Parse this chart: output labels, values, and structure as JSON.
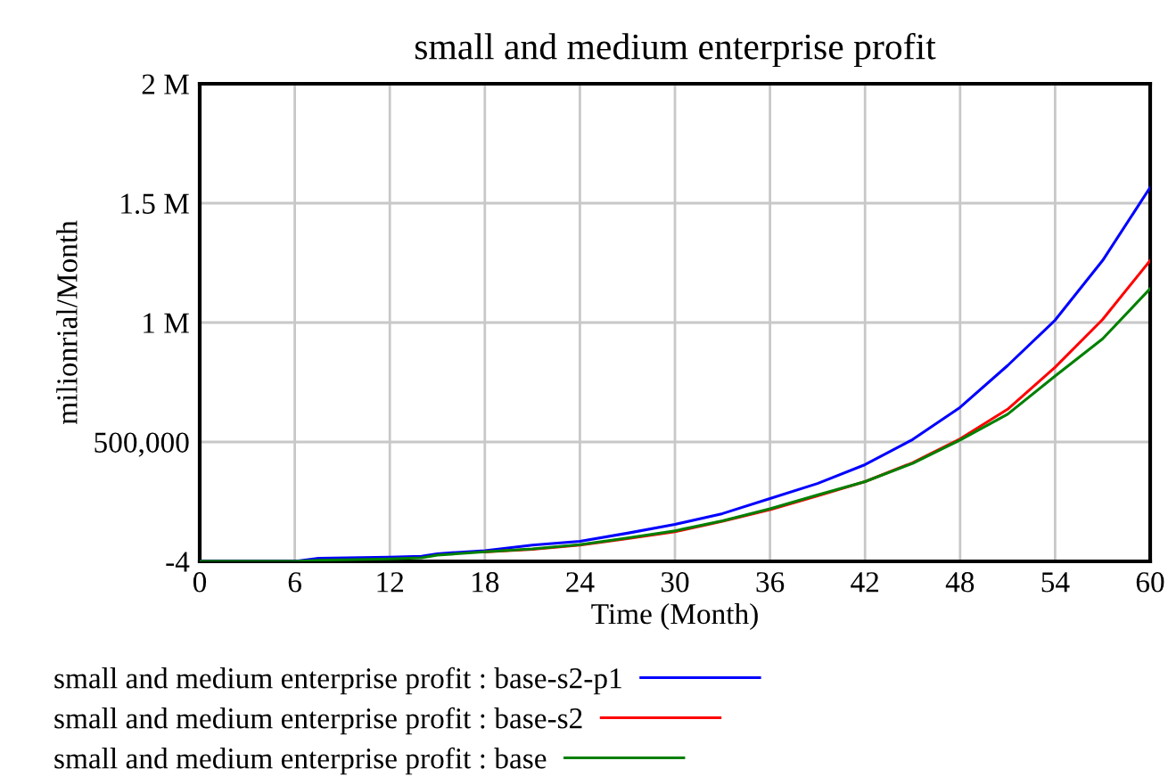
{
  "chart_data": {
    "type": "line",
    "title": "small and medium enterprise profit",
    "xlabel": "Time (Month)",
    "ylabel": "milionrial/Month",
    "x": [
      0,
      6,
      7.5,
      12,
      14,
      15,
      18,
      21,
      24,
      27,
      30,
      33,
      36,
      39,
      42,
      45,
      48,
      51,
      54,
      57,
      60
    ],
    "series": [
      {
        "name": "small and medium enterprise profit : base-s2-p1",
        "color": "#0000ff",
        "values": [
          0,
          0,
          13000,
          18000,
          21000,
          32000,
          45000,
          68000,
          84000,
          118000,
          155000,
          200000,
          263000,
          326000,
          405000,
          510000,
          645000,
          820000,
          1010000,
          1260000,
          1566000
        ]
      },
      {
        "name": "small and medium enterprise profit : base-s2",
        "color": "#ff0000",
        "values": [
          null,
          null,
          null,
          null,
          null,
          null,
          40000,
          50000,
          68000,
          95000,
          124000,
          168000,
          216000,
          274000,
          334000,
          413000,
          513000,
          637000,
          813000,
          1013000,
          1260000
        ]
      },
      {
        "name": "small and medium enterprise profit : base",
        "color": "#008000",
        "values": [
          0,
          0,
          5000,
          10000,
          15000,
          26000,
          40000,
          52000,
          70000,
          98000,
          128000,
          170000,
          220000,
          278000,
          334000,
          410000,
          508000,
          616000,
          776000,
          932000,
          1142000
        ]
      }
    ],
    "xlim": [
      0,
      60
    ],
    "xticks": [
      0,
      6,
      12,
      18,
      24,
      30,
      36,
      42,
      48,
      54,
      60
    ],
    "ylim": [
      -4,
      2000000
    ],
    "yticks": [
      -4,
      {
        "value": 500000,
        "label": "500,000"
      },
      {
        "value": 1000000,
        "label": "1 M"
      },
      {
        "value": 1500000,
        "label": "1.5 M"
      },
      {
        "value": 2000000,
        "label": "2 M"
      }
    ],
    "grid": true,
    "legend": "bottom"
  }
}
